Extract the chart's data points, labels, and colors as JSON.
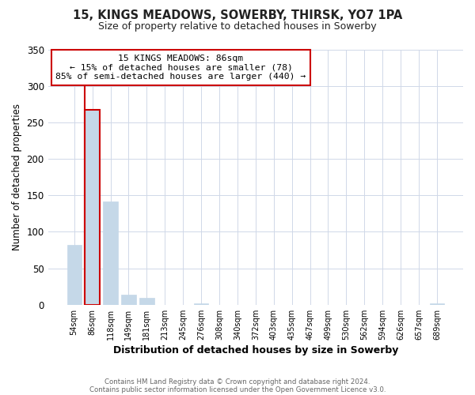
{
  "title": "15, KINGS MEADOWS, SOWERBY, THIRSK, YO7 1PA",
  "subtitle": "Size of property relative to detached houses in Sowerby",
  "xlabel": "Distribution of detached houses by size in Sowerby",
  "ylabel": "Number of detached properties",
  "footer_lines": [
    "Contains HM Land Registry data © Crown copyright and database right 2024.",
    "Contains public sector information licensed under the Open Government Licence v3.0."
  ],
  "bar_labels": [
    "54sqm",
    "86sqm",
    "118sqm",
    "149sqm",
    "181sqm",
    "213sqm",
    "245sqm",
    "276sqm",
    "308sqm",
    "340sqm",
    "372sqm",
    "403sqm",
    "435sqm",
    "467sqm",
    "499sqm",
    "530sqm",
    "562sqm",
    "594sqm",
    "626sqm",
    "657sqm",
    "689sqm"
  ],
  "bar_heights": [
    82,
    267,
    142,
    14,
    10,
    0,
    0,
    2,
    0,
    0,
    0,
    0,
    0,
    0,
    0,
    0,
    0,
    0,
    0,
    0,
    2
  ],
  "highlight_bar_index": 1,
  "highlight_color": "#cc0000",
  "normal_color": "#c5d8e8",
  "annotation_text": "15 KINGS MEADOWS: 86sqm\n← 15% of detached houses are smaller (78)\n85% of semi-detached houses are larger (440) →",
  "annotation_box_color": "#ffffff",
  "annotation_box_edge_color": "#cc0000",
  "ylim": [
    0,
    350
  ],
  "yticks": [
    0,
    50,
    100,
    150,
    200,
    250,
    300,
    350
  ],
  "grid_color": "#d0d8e8",
  "title_fontsize": 10.5,
  "subtitle_fontsize": 9
}
